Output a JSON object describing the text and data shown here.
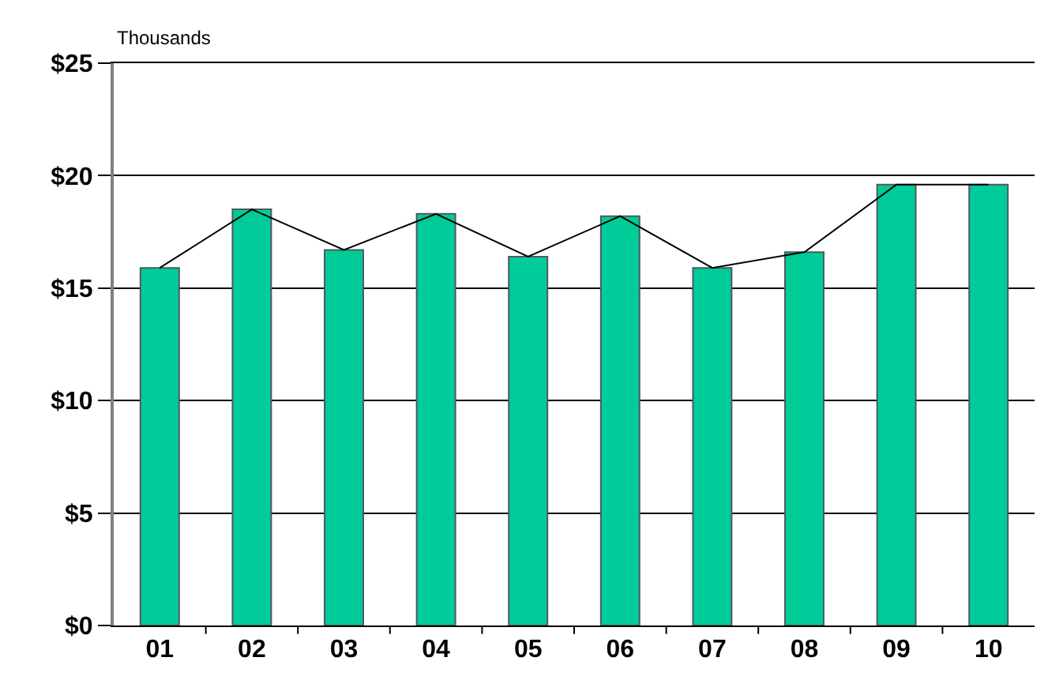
{
  "chart_data": {
    "type": "bar",
    "annotations": [
      "Thousands"
    ],
    "categories": [
      "01",
      "02",
      "03",
      "04",
      "05",
      "06",
      "07",
      "08",
      "09",
      "10"
    ],
    "series": [
      {
        "color": "#00cc99",
        "values": [
          15.9,
          18.5,
          16.7,
          18.3,
          16.4,
          18.2,
          15.9,
          16.6,
          19.6,
          19.6
        ]
      },
      {
        "type": "line",
        "color": "#000000",
        "values": [
          15.9,
          18.5,
          16.7,
          18.3,
          16.4,
          18.2,
          15.9,
          16.6,
          19.6,
          19.6
        ]
      }
    ],
    "ylim": [
      0,
      25
    ],
    "yticks": [
      {
        "value": 0,
        "label": "$0"
      },
      {
        "value": 5,
        "label": "$5"
      },
      {
        "value": 10,
        "label": "$10"
      },
      {
        "value": 15,
        "label": "$15"
      },
      {
        "value": 20,
        "label": "$20"
      },
      {
        "value": 25,
        "label": "$25"
      }
    ],
    "grid": "y",
    "legend": false,
    "marker": "none",
    "line_style": "solid"
  }
}
